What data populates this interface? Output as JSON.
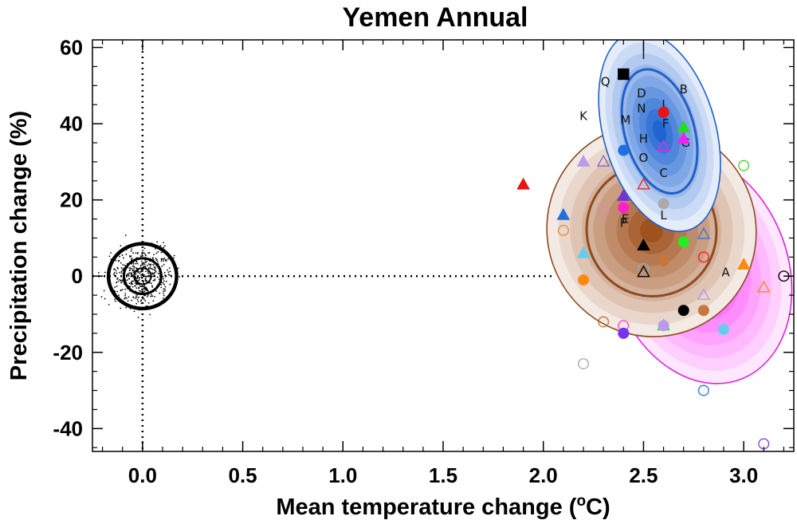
{
  "chart_data": {
    "type": "scatter",
    "title": "Yemen Annual",
    "xlabel": "Mean temperature change (",
    "xlabel_sup": "o",
    "xlabel_unit": "C)",
    "ylabel": "Precipitation change (%)",
    "xlim": [
      -0.25,
      3.25
    ],
    "ylim": [
      -46,
      62
    ],
    "xticks": [
      "0.0",
      "0.5",
      "1.0",
      "1.5",
      "2.0",
      "2.5",
      "3.0"
    ],
    "xtick_values": [
      0.0,
      0.5,
      1.0,
      1.5,
      2.0,
      2.5,
      3.0
    ],
    "yticks": [
      "-40",
      "-20",
      "0",
      "20",
      "40",
      "60"
    ],
    "ytick_values": [
      -40,
      -20,
      0,
      20,
      40,
      60
    ],
    "reference_lines": {
      "x": 0,
      "y": 0,
      "style": "dotted"
    },
    "ellipses": [
      {
        "name": "pink",
        "cx": 2.78,
        "cy": 2,
        "rx": 0.44,
        "ry": 31,
        "angle": -20,
        "edge": "#e020e0",
        "fill": "#ff33ff",
        "contour": false
      },
      {
        "name": "brown",
        "cx": 2.54,
        "cy": 12,
        "rx": 0.52,
        "ry": 28,
        "angle": -26,
        "edge": "#8b4a20",
        "fill": "#a0521e",
        "contour": true
      },
      {
        "name": "blue",
        "cx": 2.58,
        "cy": 38,
        "rx": 0.28,
        "ry": 27,
        "angle": -16,
        "edge": "#1f5fc8",
        "fill": "#1e64d2",
        "contour": true
      },
      {
        "name": "natural-variability",
        "cx": 0.0,
        "cy": 0,
        "rx": 0.17,
        "ry": 8.5,
        "angle": 0,
        "edge": "#000000",
        "fill": "none",
        "contour": true
      }
    ],
    "letters": [
      {
        "t": "I",
        "x": 2.5,
        "y": 58
      },
      {
        "t": "Q",
        "x": 2.31,
        "y": 51
      },
      {
        "t": "B",
        "x": 2.7,
        "y": 49
      },
      {
        "t": "D",
        "x": 2.49,
        "y": 48
      },
      {
        "t": "N",
        "x": 2.49,
        "y": 44
      },
      {
        "t": "J",
        "x": 2.6,
        "y": 45
      },
      {
        "t": "K",
        "x": 2.2,
        "y": 42
      },
      {
        "t": "M",
        "x": 2.41,
        "y": 41
      },
      {
        "t": "F",
        "x": 2.61,
        "y": 40
      },
      {
        "t": "H",
        "x": 2.5,
        "y": 36
      },
      {
        "t": "O",
        "x": 2.5,
        "y": 31
      },
      {
        "t": "G",
        "x": 2.71,
        "y": 35
      },
      {
        "t": "C",
        "x": 2.6,
        "y": 27
      },
      {
        "t": "L",
        "x": 2.6,
        "y": 16
      },
      {
        "t": "E",
        "x": 2.41,
        "y": 15
      },
      {
        "t": "P",
        "x": 2.4,
        "y": 14
      },
      {
        "t": "A",
        "x": 2.91,
        "y": 1
      }
    ],
    "points": [
      {
        "x": 1.9,
        "y": 24,
        "m": "tri",
        "c": "#ee1111",
        "f": true
      },
      {
        "x": 2.1,
        "y": 16,
        "m": "tri",
        "c": "#1f6fe0",
        "f": true
      },
      {
        "x": 2.1,
        "y": 12,
        "m": "circ",
        "c": "#ee8833",
        "f": false
      },
      {
        "x": 2.2,
        "y": 6,
        "m": "tri",
        "c": "#66ccee",
        "f": true
      },
      {
        "x": 2.2,
        "y": -1,
        "m": "circ",
        "c": "#ff8811",
        "f": true
      },
      {
        "x": 2.2,
        "y": -23,
        "m": "circ",
        "c": "#aaaaaa",
        "f": false
      },
      {
        "x": 2.2,
        "y": 30,
        "m": "tri",
        "c": "#bb99ee",
        "f": true
      },
      {
        "x": 2.3,
        "y": 30,
        "m": "tri",
        "c": "#8866cc",
        "f": false
      },
      {
        "x": 2.3,
        "y": 17,
        "m": "circ",
        "c": "#dd88bb",
        "f": false
      },
      {
        "x": 2.3,
        "y": -12,
        "m": "circ",
        "c": "#c8763a",
        "f": false
      },
      {
        "x": 2.4,
        "y": 53,
        "m": "sq",
        "c": "#000000",
        "f": true
      },
      {
        "x": 2.4,
        "y": 33,
        "m": "circ",
        "c": "#1f6fe0",
        "f": true
      },
      {
        "x": 2.4,
        "y": 21,
        "m": "tri",
        "c": "#7733cc",
        "f": true
      },
      {
        "x": 2.4,
        "y": 18,
        "m": "circ",
        "c": "#ff22cc",
        "f": true
      },
      {
        "x": 2.4,
        "y": -13,
        "m": "circ",
        "c": "#ff44cc",
        "f": false
      },
      {
        "x": 2.4,
        "y": -15,
        "m": "circ",
        "c": "#7733ee",
        "f": true
      },
      {
        "x": 2.5,
        "y": 24,
        "m": "tri",
        "c": "#ee2222",
        "f": false
      },
      {
        "x": 2.5,
        "y": 8,
        "m": "tri",
        "c": "#000000",
        "f": true
      },
      {
        "x": 2.5,
        "y": 2,
        "m": "circ",
        "c": "#88aacc",
        "f": false
      },
      {
        "x": 2.5,
        "y": 1,
        "m": "tri",
        "c": "#000000",
        "f": false
      },
      {
        "x": 2.6,
        "y": 43,
        "m": "circ",
        "c": "#ee1111",
        "f": true
      },
      {
        "x": 2.6,
        "y": 34,
        "m": "tri",
        "c": "#ee22ee",
        "f": false
      },
      {
        "x": 2.6,
        "y": 19,
        "m": "circ",
        "c": "#aaaaaa",
        "f": true
      },
      {
        "x": 2.6,
        "y": 4,
        "m": "circ",
        "c": "#c8763a",
        "f": true
      },
      {
        "x": 2.6,
        "y": -13,
        "m": "tri",
        "c": "#33dd33",
        "f": false
      },
      {
        "x": 2.6,
        "y": -13,
        "m": "circ",
        "c": "#bb99ee",
        "f": true
      },
      {
        "x": 2.7,
        "y": 39,
        "m": "tri",
        "c": "#22dd22",
        "f": true
      },
      {
        "x": 2.7,
        "y": 36,
        "m": "tri",
        "c": "#ee22ee",
        "f": true
      },
      {
        "x": 2.7,
        "y": 9,
        "m": "circ",
        "c": "#22ee22",
        "f": true
      },
      {
        "x": 2.7,
        "y": -9,
        "m": "circ",
        "c": "#000000",
        "f": true
      },
      {
        "x": 2.8,
        "y": 11,
        "m": "tri",
        "c": "#3377dd",
        "f": false
      },
      {
        "x": 2.8,
        "y": 5,
        "m": "circ",
        "c": "#ee2222",
        "f": false
      },
      {
        "x": 2.8,
        "y": -5,
        "m": "tri",
        "c": "#bb99ee",
        "f": false
      },
      {
        "x": 2.8,
        "y": -9,
        "m": "circ",
        "c": "#c8763a",
        "f": true
      },
      {
        "x": 2.8,
        "y": -30,
        "m": "circ",
        "c": "#3377dd",
        "f": false
      },
      {
        "x": 2.9,
        "y": -14,
        "m": "circ",
        "c": "#66ccee",
        "f": true
      },
      {
        "x": 3.0,
        "y": 29,
        "m": "circ",
        "c": "#55cc33",
        "f": false
      },
      {
        "x": 3.0,
        "y": 3,
        "m": "tri",
        "c": "#ff8811",
        "f": true
      },
      {
        "x": 3.1,
        "y": -3,
        "m": "tri",
        "c": "#ff8811",
        "f": false
      },
      {
        "x": 3.1,
        "y": -44,
        "m": "circ",
        "c": "#8844dd",
        "f": false
      },
      {
        "x": 3.2,
        "y": 0,
        "m": "circ",
        "c": "#000000",
        "f": false
      }
    ]
  }
}
